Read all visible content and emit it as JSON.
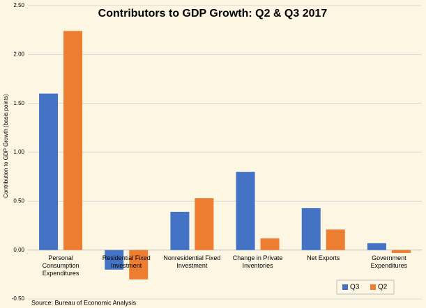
{
  "chart_data": {
    "type": "bar",
    "title": "Contributors to GDP Growth:  Q2 & Q3 2017",
    "y_label": "Contribution to GDP Growth (basis points)",
    "source": "Source: Bureau of Economic Analysis",
    "categories": [
      "Personal Consumption Expenditures",
      "Residential Fixed Investment",
      "Nonresidential Fixed Investment",
      "Change in Private Inventories",
      "Net Exports",
      "Government Expenditures"
    ],
    "series": [
      {
        "name": "Q3",
        "color": "#4472c4",
        "values": [
          1.6,
          -0.2,
          0.39,
          0.8,
          0.43,
          0.07
        ]
      },
      {
        "name": "Q2",
        "color": "#ed7d31",
        "values": [
          2.24,
          -0.3,
          0.53,
          0.12,
          0.21,
          -0.03
        ]
      }
    ],
    "ylim": [
      -0.5,
      2.5
    ],
    "yticks": [
      {
        "value": -0.5,
        "label": "-0.50"
      },
      {
        "value": 0,
        "label": "0.00"
      },
      {
        "value": 0.5,
        "label": "0.50"
      },
      {
        "value": 1,
        "label": "1.00"
      },
      {
        "value": 1.5,
        "label": "1.50"
      },
      {
        "value": 2,
        "label": "2.00"
      },
      {
        "value": 2.5,
        "label": "2.50"
      }
    ],
    "grid": true,
    "legend": "bottom-right"
  }
}
